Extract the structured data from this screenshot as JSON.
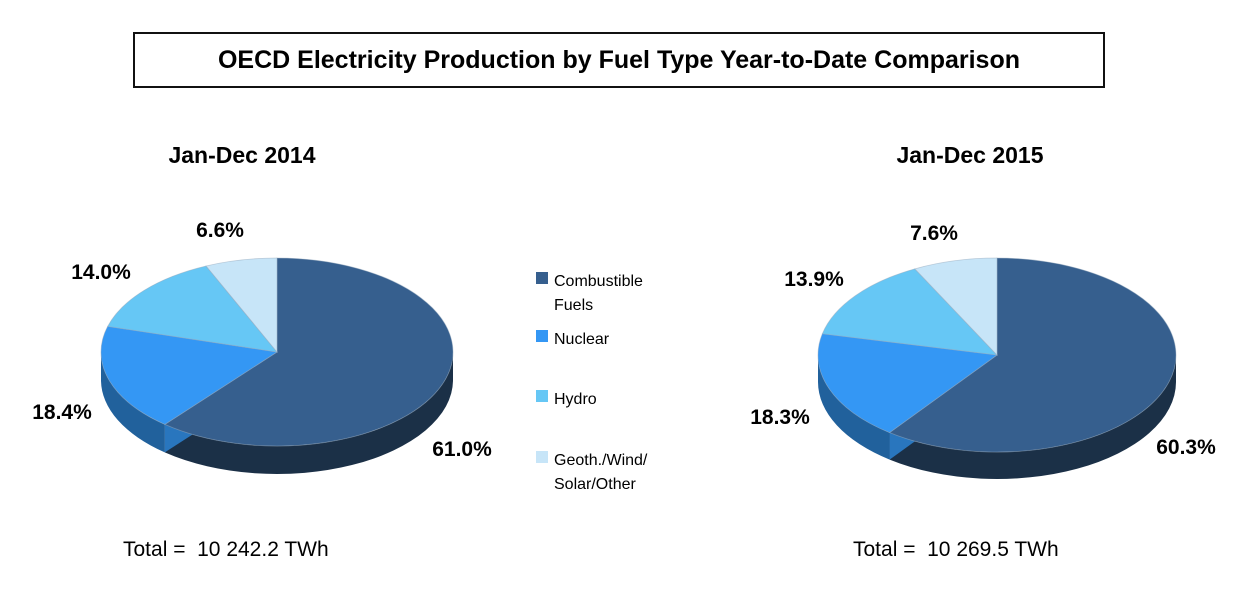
{
  "header": {
    "title": "OECD Electricity Production by Fuel Type Year-to-Date Comparison"
  },
  "legend": {
    "items": [
      {
        "label": "Combustible Fuels",
        "color": "#365F8E"
      },
      {
        "label": "Nuclear",
        "color": "#3497F4"
      },
      {
        "label": "Hydro",
        "color": "#66C7F5"
      },
      {
        "label": "Geoth./Wind/\nSolar/Other",
        "color": "#C7E5F8"
      }
    ]
  },
  "palette": [
    "#365F8E",
    "#3497F4",
    "#66C7F5",
    "#C7E5F8"
  ],
  "chart_data": [
    {
      "type": "pie",
      "title": "Jan-Dec 2014",
      "categories": [
        "Combustible Fuels",
        "Nuclear",
        "Hydro",
        "Geoth./Wind/Solar/Other"
      ],
      "values": [
        61.0,
        18.4,
        14.0,
        6.6
      ],
      "labels": [
        "61.0%",
        "18.4%",
        "14.0%",
        "6.6%"
      ],
      "total_text": "Total =  10 242.2 TWh",
      "total_value_twh": 10242.2,
      "unit": "TWh",
      "legend_position": "center-between",
      "style": "3d-pie, clockwise from 12 o'clock"
    },
    {
      "type": "pie",
      "title": "Jan-Dec 2015",
      "categories": [
        "Combustible Fuels",
        "Nuclear",
        "Hydro",
        "Geoth./Wind/Solar/Other"
      ],
      "values": [
        60.3,
        18.3,
        13.9,
        7.6
      ],
      "labels": [
        "60.3%",
        "18.3%",
        "13.9%",
        "7.6%"
      ],
      "total_text": "Total =  10 269.5 TWh",
      "total_value_twh": 10269.5,
      "unit": "TWh",
      "legend_position": "center-between",
      "style": "3d-pie, clockwise from 12 o'clock"
    }
  ]
}
